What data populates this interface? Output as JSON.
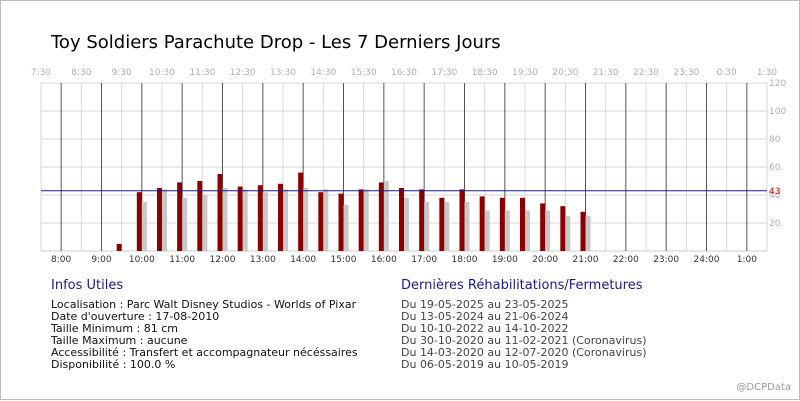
{
  "title": "Toy Soldiers Parachute Drop - Les 7 Derniers Jours",
  "chart_data": {
    "type": "bar",
    "top_axis_ticks": [
      "7:30",
      "8:30",
      "9:30",
      "10:30",
      "11:30",
      "12:30",
      "13:30",
      "14:30",
      "15:30",
      "16:30",
      "17:30",
      "18:30",
      "19:30",
      "20:30",
      "21:30",
      "22:30",
      "23:30",
      "0:30",
      "1:30"
    ],
    "bottom_axis_ticks": [
      "8:00",
      "9:00",
      "10:00",
      "11:00",
      "12:00",
      "13:00",
      "14:00",
      "15:00",
      "16:00",
      "17:00",
      "18:00",
      "19:00",
      "20:00",
      "21:00",
      "22:00",
      "23:00",
      "24:00",
      "1:00"
    ],
    "y_ticks": [
      20,
      40,
      60,
      80,
      100,
      120
    ],
    "ylim": [
      0,
      120
    ],
    "x_start_hour": 7.5,
    "x_end_hour": 25.5,
    "reference_line": {
      "value": 43,
      "label": "43",
      "color": "#1a1a8c",
      "label_color": "#cc0000"
    },
    "series": [
      {
        "color": "#8b0000",
        "points": [
          {
            "x": 9.5,
            "y": 5
          },
          {
            "x": 10,
            "y": 42
          },
          {
            "x": 10.5,
            "y": 45
          },
          {
            "x": 11,
            "y": 49
          },
          {
            "x": 11.5,
            "y": 50
          },
          {
            "x": 12,
            "y": 55
          },
          {
            "x": 12.5,
            "y": 46
          },
          {
            "x": 13,
            "y": 47
          },
          {
            "x": 13.5,
            "y": 48
          },
          {
            "x": 14,
            "y": 56
          },
          {
            "x": 14.5,
            "y": 42
          },
          {
            "x": 15,
            "y": 41
          },
          {
            "x": 15.5,
            "y": 44
          },
          {
            "x": 16,
            "y": 49
          },
          {
            "x": 16.5,
            "y": 45
          },
          {
            "x": 17,
            "y": 44
          },
          {
            "x": 17.5,
            "y": 38
          },
          {
            "x": 18,
            "y": 44
          },
          {
            "x": 18.5,
            "y": 39
          },
          {
            "x": 19,
            "y": 38
          },
          {
            "x": 19.5,
            "y": 38
          },
          {
            "x": 20,
            "y": 34
          },
          {
            "x": 20.5,
            "y": 32
          },
          {
            "x": 21,
            "y": 28
          }
        ]
      },
      {
        "color": "#c8c8c8",
        "points": [
          {
            "x": 10,
            "y": 35
          },
          {
            "x": 10.5,
            "y": 44
          },
          {
            "x": 11,
            "y": 38
          },
          {
            "x": 11.5,
            "y": 40
          },
          {
            "x": 12,
            "y": 45
          },
          {
            "x": 12.5,
            "y": 44
          },
          {
            "x": 13,
            "y": 42
          },
          {
            "x": 13.5,
            "y": 44
          },
          {
            "x": 14,
            "y": 45
          },
          {
            "x": 14.5,
            "y": 44
          },
          {
            "x": 15,
            "y": 33
          },
          {
            "x": 15.5,
            "y": 44
          },
          {
            "x": 16,
            "y": 50
          },
          {
            "x": 16.5,
            "y": 38
          },
          {
            "x": 17,
            "y": 35
          },
          {
            "x": 17.5,
            "y": 35
          },
          {
            "x": 18,
            "y": 35
          },
          {
            "x": 18.5,
            "y": 29
          },
          {
            "x": 19,
            "y": 29
          },
          {
            "x": 19.5,
            "y": 29
          },
          {
            "x": 20,
            "y": 29
          },
          {
            "x": 20.5,
            "y": 25
          },
          {
            "x": 21,
            "y": 25
          }
        ]
      }
    ],
    "grid": true
  },
  "info": {
    "heading": "Infos Utiles",
    "lines": [
      "Localisation : Parc Walt Disney Studios - Worlds of Pixar",
      "Date d'ouverture : 17-08-2010",
      "Taille Minimum : 81 cm",
      "Taille Maximum : aucune",
      "Accessibilité : Transfert et accompagnateur nécéssaires",
      "Disponibilité : 100.0 %"
    ]
  },
  "rehab": {
    "heading": "Dernières Réhabilitations/Fermetures",
    "lines": [
      "Du 19-05-2025 au 23-05-2025",
      "Du 13-05-2024 au 21-06-2024",
      "Du 10-10-2022 au 14-10-2022",
      "Du 30-10-2020 au 11-02-2021 (Coronavirus)",
      "Du 14-03-2020 au 12-07-2020 (Coronavirus)",
      "Du 06-05-2019 au 10-05-2019"
    ]
  },
  "credit": "@DCPData"
}
